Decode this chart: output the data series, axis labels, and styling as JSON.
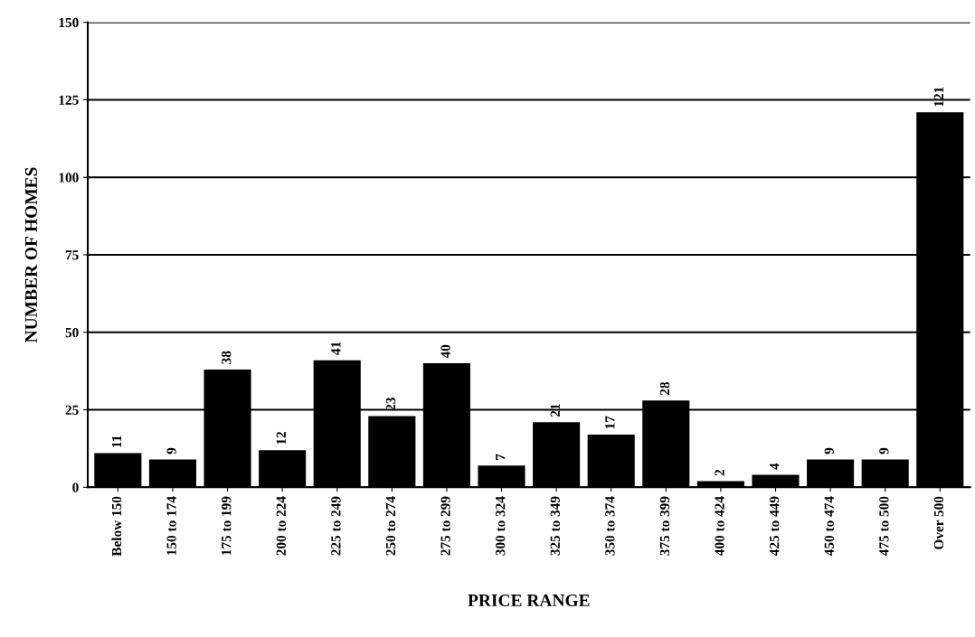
{
  "chart_data": {
    "type": "bar",
    "xlabel": "PRICE RANGE",
    "ylabel": "NUMBER OF HOMES",
    "categories": [
      "Below 150",
      "150 to 174",
      "175 to 199",
      "200 to 224",
      "225 to 249",
      "250 to 274",
      "275 to 299",
      "300 to 324",
      "325 to 349",
      "350 to 374",
      "375 to 399",
      "400 to 424",
      "425 to 449",
      "450 to 474",
      "475 to 500",
      "Over 500"
    ],
    "values": [
      11,
      9,
      38,
      12,
      41,
      23,
      40,
      7,
      21,
      17,
      28,
      2,
      4,
      9,
      9,
      121
    ],
    "color": "#000000",
    "ylim": [
      0,
      150
    ],
    "yticks": [
      0,
      25,
      50,
      75,
      100,
      125,
      150
    ],
    "grid": "y",
    "data_labels": true
  }
}
